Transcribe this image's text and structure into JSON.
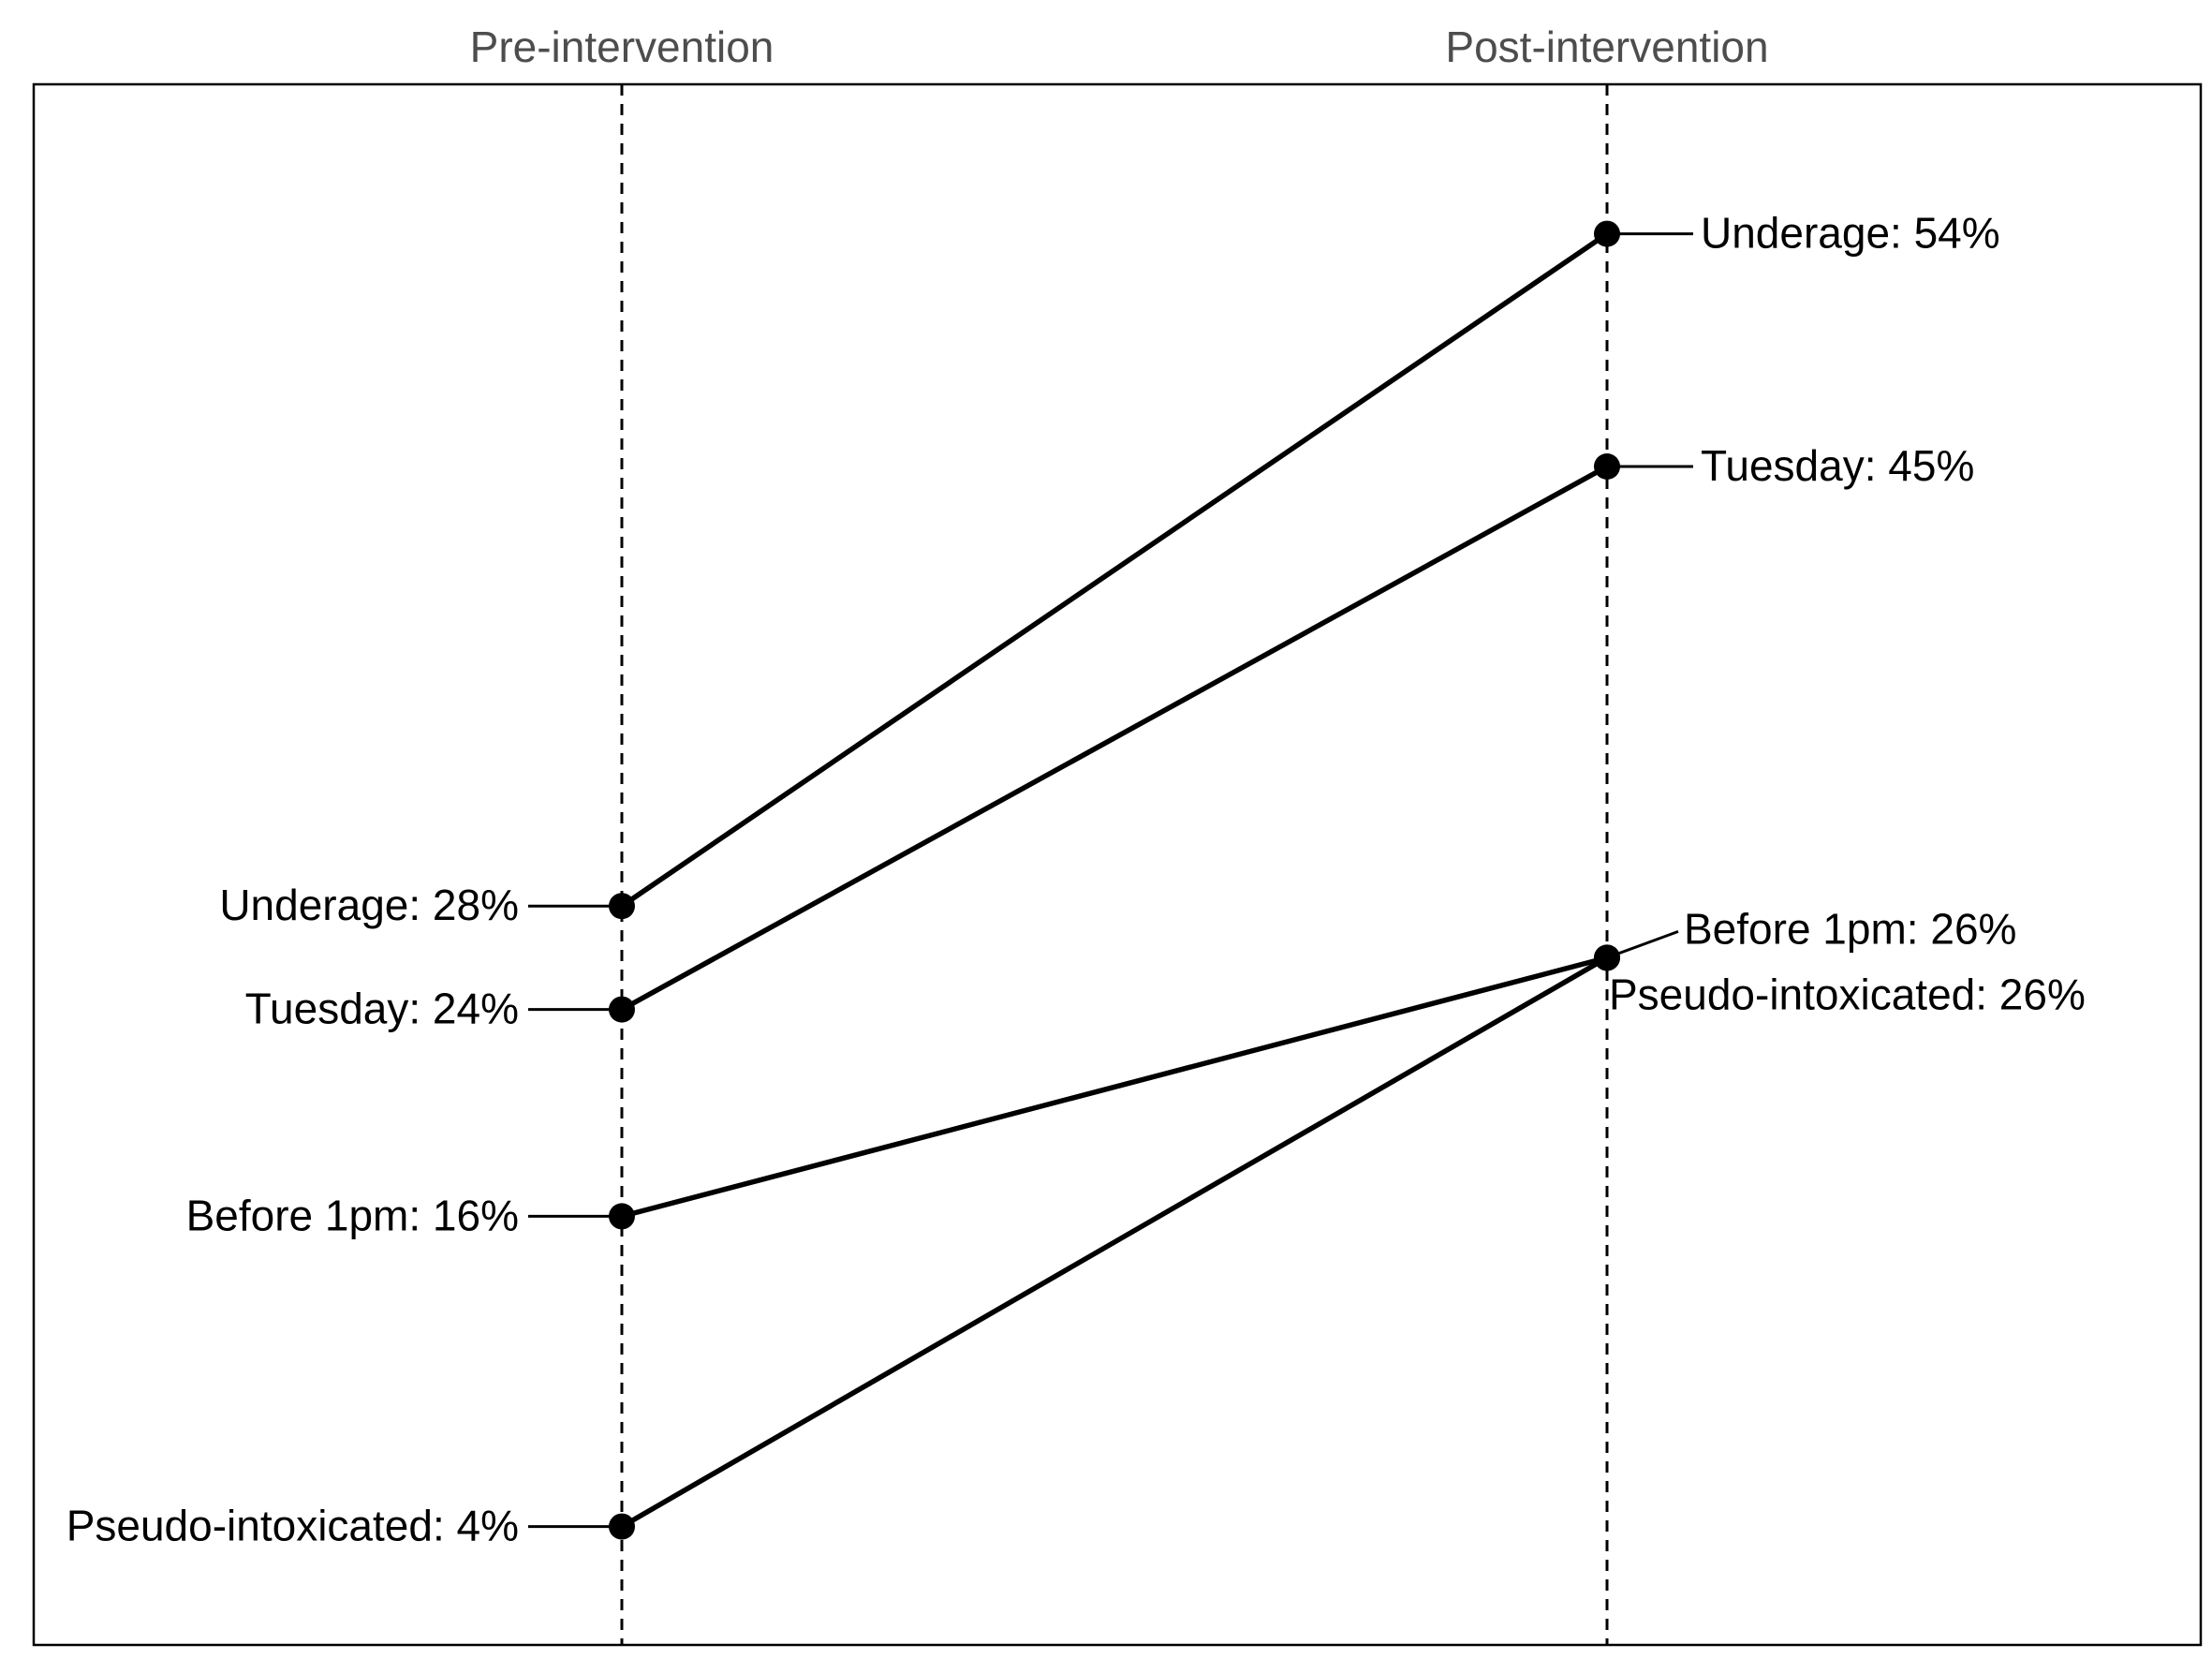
{
  "chart_data": {
    "type": "line",
    "subtype": "slopegraph",
    "categories": [
      "Pre-intervention",
      "Post-intervention"
    ],
    "series": [
      {
        "name": "Underage",
        "values": [
          28,
          54
        ],
        "labels": [
          "Underage: 28%",
          "Underage: 54%"
        ]
      },
      {
        "name": "Tuesday",
        "values": [
          24,
          45
        ],
        "labels": [
          "Tuesday: 24%",
          "Tuesday: 45%"
        ]
      },
      {
        "name": "Before 1pm",
        "values": [
          16,
          26
        ],
        "labels": [
          "Before 1pm: 16%",
          "Before 1pm: 26%"
        ]
      },
      {
        "name": "Pseudo-intoxicated",
        "values": [
          4,
          26
        ],
        "labels": [
          "Pseudo-intoxicated: 4%",
          "Pseudo-intoxicated: 26%"
        ]
      }
    ],
    "ylim": [
      0,
      56
    ],
    "grid": false,
    "legend": "none",
    "colors": {
      "line": "#000000",
      "point": "#000000",
      "axis_title": "#4d4d4d",
      "reference_line": "#000000"
    }
  }
}
